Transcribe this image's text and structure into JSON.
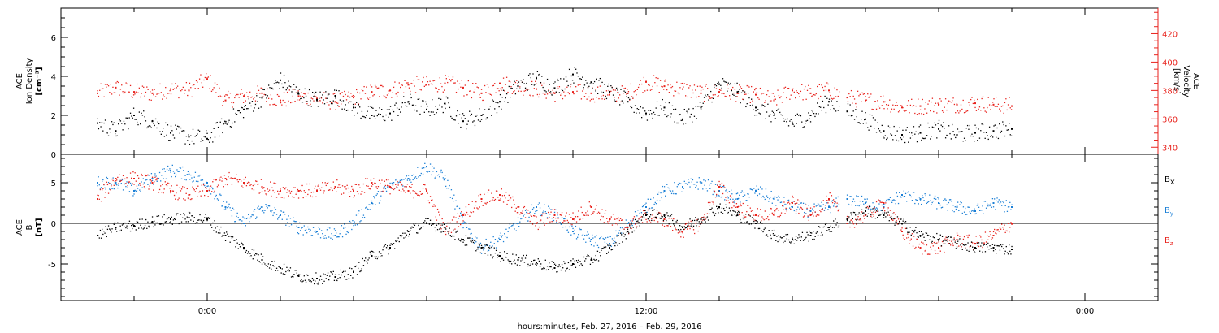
{
  "chart_data": [
    {
      "type": "scatter",
      "panel": "top",
      "ylabel_left": [
        "ACE",
        "Ion Density",
        "[cm⁻³]"
      ],
      "ylabel_right": [
        "ACE",
        "Velocity",
        "[km/s]"
      ],
      "ylim_left": [
        0,
        7.5
      ],
      "ylim_right": [
        335,
        438
      ],
      "yticks_left": [
        "0",
        "2",
        "4",
        "6"
      ],
      "yticks_right": [
        "340",
        "360",
        "380",
        "400",
        "420"
      ],
      "grid": false,
      "series": [
        {
          "name": "Ion Density",
          "axis": "left",
          "color": "#000000",
          "points": [
            [
              -3.0,
              1.6
            ],
            [
              -2.5,
              1.2
            ],
            [
              -2.0,
              2.0
            ],
            [
              -1.5,
              1.7
            ],
            [
              -1.0,
              1.1
            ],
            [
              -0.5,
              0.9
            ],
            [
              0.0,
              0.8
            ],
            [
              0.5,
              1.6
            ],
            [
              1.0,
              2.3
            ],
            [
              1.5,
              2.9
            ],
            [
              2.0,
              3.8
            ],
            [
              2.5,
              3.1
            ],
            [
              3.0,
              2.8
            ],
            [
              3.5,
              3.0
            ],
            [
              4.0,
              2.4
            ],
            [
              4.5,
              2.0
            ],
            [
              5.0,
              2.1
            ],
            [
              5.5,
              2.7
            ],
            [
              6.0,
              2.3
            ],
            [
              6.5,
              2.6
            ],
            [
              7.0,
              1.7
            ],
            [
              7.5,
              2.0
            ],
            [
              8.0,
              2.7
            ],
            [
              8.5,
              3.5
            ],
            [
              9.0,
              3.9
            ],
            [
              9.5,
              3.4
            ],
            [
              10.0,
              4.1
            ],
            [
              10.5,
              3.7
            ],
            [
              11.0,
              3.2
            ],
            [
              11.5,
              2.7
            ],
            [
              12.0,
              2.1
            ],
            [
              12.5,
              2.4
            ],
            [
              13.0,
              1.8
            ],
            [
              13.5,
              2.4
            ],
            [
              14.0,
              3.6
            ],
            [
              14.5,
              3.2
            ],
            [
              15.0,
              2.4
            ],
            [
              15.5,
              2.0
            ],
            [
              16.0,
              1.6
            ],
            [
              16.5,
              2.0
            ],
            [
              17.0,
              2.7
            ],
            [
              17.5,
              2.2
            ],
            [
              18.0,
              1.8
            ],
            [
              18.5,
              1.2
            ],
            [
              19.0,
              1.0
            ],
            [
              19.5,
              1.1
            ],
            [
              20.0,
              1.3
            ],
            [
              20.5,
              1.0
            ],
            [
              21.0,
              1.1
            ],
            [
              21.5,
              1.2
            ],
            [
              22.0,
              1.3
            ]
          ]
        },
        {
          "name": "Velocity",
          "axis": "right",
          "color": "#e8221c",
          "points": [
            [
              -3.0,
              378
            ],
            [
              -2.5,
              382
            ],
            [
              -2.0,
              379
            ],
            [
              -1.5,
              378
            ],
            [
              -1.0,
              381
            ],
            [
              -0.5,
              380
            ],
            [
              0.0,
              388
            ],
            [
              0.5,
              373
            ],
            [
              1.0,
              376
            ],
            [
              1.5,
              378
            ],
            [
              2.0,
              373
            ],
            [
              2.5,
              376
            ],
            [
              3.0,
              374
            ],
            [
              3.5,
              372
            ],
            [
              4.0,
              375
            ],
            [
              4.5,
              379
            ],
            [
              5.0,
              380
            ],
            [
              5.5,
              384
            ],
            [
              6.0,
              384
            ],
            [
              6.5,
              385
            ],
            [
              7.0,
              382
            ],
            [
              7.5,
              378
            ],
            [
              8.0,
              385
            ],
            [
              8.5,
              383
            ],
            [
              9.0,
              381
            ],
            [
              9.5,
              378
            ],
            [
              10.0,
              379
            ],
            [
              10.5,
              378
            ],
            [
              11.0,
              377
            ],
            [
              11.5,
              378
            ],
            [
              12.0,
              386
            ],
            [
              12.5,
              383
            ],
            [
              13.0,
              381
            ],
            [
              13.5,
              378
            ],
            [
              14.0,
              379
            ],
            [
              14.5,
              378
            ],
            [
              15.0,
              377
            ],
            [
              15.5,
              373
            ],
            [
              16.0,
              380
            ],
            [
              16.5,
              378
            ],
            [
              17.0,
              380
            ],
            [
              17.5,
              375
            ],
            [
              18.0,
              373
            ],
            [
              18.5,
              372
            ],
            [
              19.0,
              368
            ],
            [
              19.5,
              369
            ],
            [
              20.0,
              370
            ],
            [
              20.5,
              370
            ],
            [
              21.0,
              371
            ],
            [
              21.5,
              370
            ],
            [
              22.0,
              369
            ]
          ]
        }
      ]
    },
    {
      "type": "scatter",
      "panel": "bottom",
      "ylabel": [
        "ACE",
        "B",
        "[nT]"
      ],
      "ylim": [
        -9.5,
        8.5
      ],
      "yticks": [
        "-5",
        "0",
        "5"
      ],
      "zero_line": true,
      "grid": false,
      "legend_position": "right",
      "series": [
        {
          "name": "Bx",
          "color": "#000000",
          "points": [
            [
              -3.0,
              -1.5
            ],
            [
              -2.5,
              -0.5
            ],
            [
              -2.0,
              -0.3
            ],
            [
              -1.5,
              0.2
            ],
            [
              -1.0,
              0.5
            ],
            [
              -0.5,
              0.7
            ],
            [
              0.0,
              0.5
            ],
            [
              0.5,
              -1.5
            ],
            [
              1.0,
              -3.0
            ],
            [
              1.5,
              -4.5
            ],
            [
              2.0,
              -5.5
            ],
            [
              2.5,
              -6.5
            ],
            [
              3.0,
              -6.8
            ],
            [
              3.5,
              -6.6
            ],
            [
              4.0,
              -6.0
            ],
            [
              4.5,
              -4.0
            ],
            [
              5.0,
              -3.0
            ],
            [
              5.5,
              -1.0
            ],
            [
              6.0,
              0.0
            ],
            [
              6.5,
              -0.5
            ],
            [
              7.0,
              -2.0
            ],
            [
              7.5,
              -3.0
            ],
            [
              8.0,
              -4.0
            ],
            [
              8.5,
              -4.5
            ],
            [
              9.0,
              -4.8
            ],
            [
              9.5,
              -5.5
            ],
            [
              10.0,
              -5.0
            ],
            [
              10.5,
              -4.5
            ],
            [
              11.0,
              -3.0
            ],
            [
              11.5,
              -1.0
            ],
            [
              12.0,
              1.0
            ],
            [
              12.5,
              1.0
            ],
            [
              13.0,
              -0.5
            ],
            [
              13.5,
              0.5
            ],
            [
              14.0,
              2.0
            ],
            [
              14.5,
              1.0
            ],
            [
              15.0,
              0.0
            ],
            [
              15.5,
              -1.5
            ],
            [
              16.0,
              -2.0
            ],
            [
              16.5,
              -1.5
            ],
            [
              17.0,
              -0.5
            ],
            [
              17.5,
              0.5
            ],
            [
              18.0,
              1.5
            ],
            [
              18.5,
              1.0
            ],
            [
              19.0,
              0.0
            ],
            [
              19.5,
              -1.5
            ],
            [
              20.0,
              -2.0
            ],
            [
              20.5,
              -2.5
            ],
            [
              21.0,
              -3.0
            ],
            [
              21.5,
              -3.0
            ],
            [
              22.0,
              -3.2
            ]
          ]
        },
        {
          "name": "By",
          "color": "#1a7fd6",
          "points": [
            [
              -3.0,
              5.0
            ],
            [
              -2.5,
              5.0
            ],
            [
              -2.0,
              4.0
            ],
            [
              -1.5,
              5.5
            ],
            [
              -1.0,
              6.5
            ],
            [
              -0.5,
              6.0
            ],
            [
              0.0,
              5.0
            ],
            [
              0.5,
              2.0
            ],
            [
              1.0,
              0.0
            ],
            [
              1.5,
              2.0
            ],
            [
              2.0,
              1.0
            ],
            [
              2.5,
              -0.5
            ],
            [
              3.0,
              -1.0
            ],
            [
              3.5,
              -1.5
            ],
            [
              4.0,
              0.0
            ],
            [
              4.5,
              2.5
            ],
            [
              5.0,
              4.5
            ],
            [
              5.5,
              5.5
            ],
            [
              6.0,
              7.0
            ],
            [
              6.5,
              5.5
            ],
            [
              7.0,
              0.0
            ],
            [
              7.5,
              -3.0
            ],
            [
              8.0,
              -2.0
            ],
            [
              8.5,
              0.0
            ],
            [
              9.0,
              2.0
            ],
            [
              9.5,
              1.0
            ],
            [
              10.0,
              -1.0
            ],
            [
              10.5,
              -2.0
            ],
            [
              11.0,
              -2.5
            ],
            [
              11.5,
              0.0
            ],
            [
              12.0,
              2.0
            ],
            [
              12.5,
              4.0
            ],
            [
              13.0,
              4.5
            ],
            [
              13.5,
              5.0
            ],
            [
              14.0,
              4.0
            ],
            [
              14.5,
              3.0
            ],
            [
              15.0,
              4.0
            ],
            [
              15.5,
              3.0
            ],
            [
              16.0,
              2.0
            ],
            [
              16.5,
              1.5
            ],
            [
              17.0,
              2.0
            ],
            [
              17.5,
              3.0
            ],
            [
              18.0,
              2.5
            ],
            [
              18.5,
              2.0
            ],
            [
              19.0,
              3.5
            ],
            [
              19.5,
              3.0
            ],
            [
              20.0,
              2.5
            ],
            [
              20.5,
              2.0
            ],
            [
              21.0,
              1.5
            ],
            [
              21.5,
              2.5
            ],
            [
              22.0,
              2.0
            ]
          ]
        },
        {
          "name": "Bz",
          "color": "#e8221c",
          "points": [
            [
              -3.0,
              3.0
            ],
            [
              -2.5,
              5.5
            ],
            [
              -2.0,
              5.5
            ],
            [
              -1.5,
              5.0
            ],
            [
              -1.0,
              4.0
            ],
            [
              -0.5,
              3.5
            ],
            [
              0.0,
              4.0
            ],
            [
              0.5,
              5.5
            ],
            [
              1.0,
              5.0
            ],
            [
              1.5,
              4.5
            ],
            [
              2.0,
              4.0
            ],
            [
              2.5,
              4.0
            ],
            [
              3.0,
              4.0
            ],
            [
              3.5,
              4.5
            ],
            [
              4.0,
              4.0
            ],
            [
              4.5,
              5.0
            ],
            [
              5.0,
              4.5
            ],
            [
              5.5,
              4.0
            ],
            [
              6.0,
              4.0
            ],
            [
              6.5,
              -1.0
            ],
            [
              7.0,
              1.0
            ],
            [
              7.5,
              3.0
            ],
            [
              8.0,
              3.5
            ],
            [
              8.5,
              2.0
            ],
            [
              9.0,
              0.0
            ],
            [
              9.5,
              1.0
            ],
            [
              10.0,
              0.5
            ],
            [
              10.5,
              2.0
            ],
            [
              11.0,
              0.5
            ],
            [
              11.5,
              -0.5
            ],
            [
              12.0,
              1.0
            ],
            [
              12.5,
              0.5
            ],
            [
              13.0,
              -1.0
            ],
            [
              13.5,
              0.0
            ],
            [
              14.0,
              4.5
            ],
            [
              14.5,
              2.0
            ],
            [
              15.0,
              1.0
            ],
            [
              15.5,
              1.0
            ],
            [
              16.0,
              2.5
            ],
            [
              16.5,
              1.0
            ],
            [
              17.0,
              3.0
            ],
            [
              17.5,
              0.0
            ],
            [
              18.0,
              1.0
            ],
            [
              18.5,
              2.5
            ],
            [
              19.0,
              -1.0
            ],
            [
              19.5,
              -3.0
            ],
            [
              20.0,
              -3.0
            ],
            [
              20.5,
              -2.0
            ],
            [
              21.0,
              -2.5
            ],
            [
              21.5,
              -1.5
            ],
            [
              22.0,
              0.0
            ]
          ]
        }
      ]
    }
  ],
  "xaxis": {
    "range_hours": [
      -4.0,
      26.0
    ],
    "major_ticks_hours": [
      0,
      12,
      24
    ],
    "major_labels": [
      "0:00",
      "12:00",
      "0:00"
    ],
    "minor_tick_step_hours": 2,
    "xlabel": "hours:minutes, Feb. 27, 2016 – Feb. 29, 2016"
  },
  "legend": {
    "bx_main": "B",
    "bx_sub": "x",
    "by_main": "B",
    "by_sub": "y",
    "bz_main": "B",
    "bz_sub": "z"
  },
  "colors": {
    "red": "#e8221c",
    "blue": "#1a7fd6",
    "black": "#000000"
  }
}
